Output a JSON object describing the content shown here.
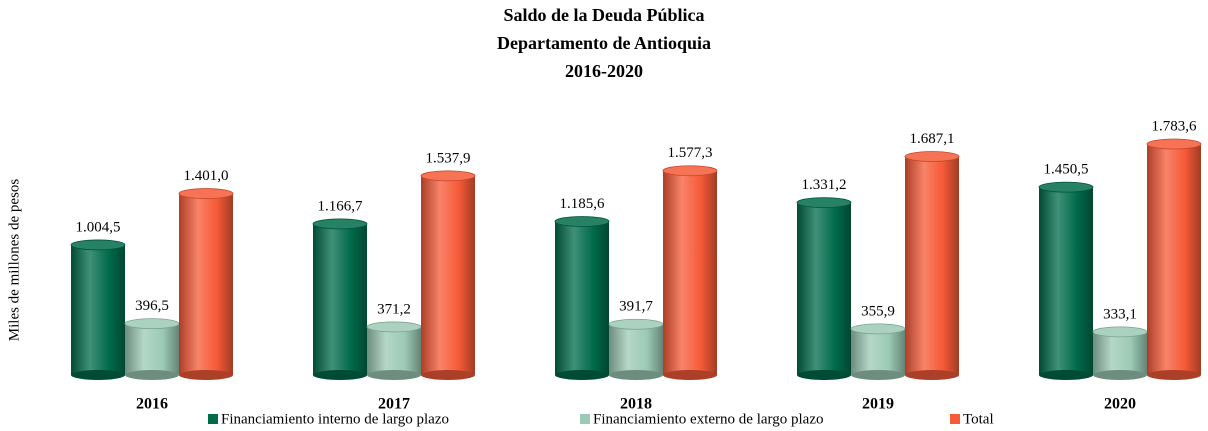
{
  "chart_data": {
    "type": "bar",
    "title": [
      "Saldo de la Deuda Pública",
      "Departamento de Antioquia",
      "2016-2020"
    ],
    "ylabel": "Miles de millones de pesos",
    "categories": [
      "2016",
      "2017",
      "2018",
      "2019",
      "2020"
    ],
    "series": [
      {
        "name": "Financiamiento interno de largo plazo",
        "color": "#006b4a",
        "values": [
          1004.5,
          1166.7,
          1185.6,
          1331.2,
          1450.5
        ],
        "value_labels": [
          "1.004,5",
          "1.166,7",
          "1.185,6",
          "1.331,2",
          "1.450,5"
        ]
      },
      {
        "name": "Financiamiento externo de largo plazo",
        "color": "#9ccab5",
        "values": [
          396.5,
          371.2,
          391.7,
          355.9,
          333.1
        ],
        "value_labels": [
          "396,5",
          "371,2",
          "391,7",
          "355,9",
          "333,1"
        ]
      },
      {
        "name": "Total",
        "color": "#f65a37",
        "values": [
          1401.0,
          1537.9,
          1577.3,
          1687.1,
          1783.6
        ],
        "value_labels": [
          "1.401,0",
          "1.537,9",
          "1.577,3",
          "1.687,1",
          "1.783,6"
        ]
      }
    ],
    "ylim": [
      0,
      2000
    ],
    "legend": "bottom"
  }
}
